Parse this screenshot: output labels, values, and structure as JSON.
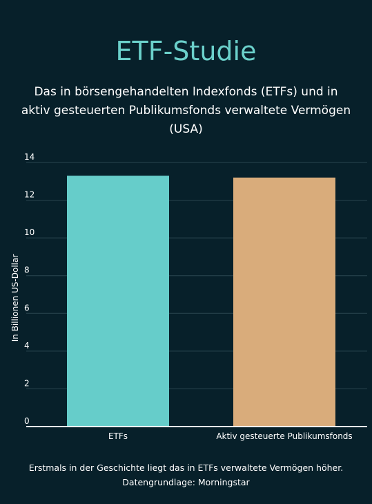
{
  "title": "ETF-Studie",
  "subtitle": "Das in börsengehandelten Indexfonds (ETFs) und in aktiv gesteuerten Publikumsfonds verwaltete Vermögen (USA)",
  "footnote": "Erstmals in der Geschichte liegt das in ETFs verwaltete Vermögen höher. Datengrundlage: Morningstar",
  "colors": {
    "background": "#07202a",
    "title": "#6bd1cb",
    "etf_bar": "#66cdca",
    "active_bar": "#d9ac7b",
    "gridline": "#2a4650",
    "axis": "#ffffff"
  },
  "chart_data": {
    "type": "bar",
    "categories": [
      "ETFs",
      "Aktiv gesteuerte Publikumsfonds"
    ],
    "values": [
      13.3,
      13.2
    ],
    "title": "",
    "xlabel": "",
    "ylabel": "In Billionen US-Dollar",
    "ylim": [
      0,
      14
    ],
    "yticks": [
      0,
      2,
      4,
      6,
      8,
      10,
      12,
      14
    ],
    "grid": true,
    "legend": "none"
  }
}
